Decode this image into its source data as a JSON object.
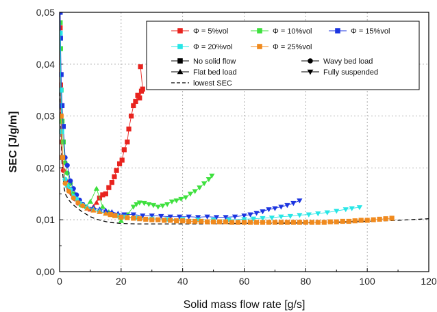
{
  "chart_data": {
    "type": "scatter",
    "title": "",
    "xlabel": "Solid mass flow rate [g/s]",
    "ylabel": "SEC [J/g/m]",
    "xlim": [
      0,
      120
    ],
    "ylim": [
      0,
      0.05
    ],
    "xticks": [
      "0",
      "20",
      "40",
      "60",
      "80",
      "100",
      "120"
    ],
    "yticks": [
      "0,00",
      "0,01",
      "0,02",
      "0,03",
      "0,04",
      "0,05"
    ],
    "grid": true,
    "legend_position": "top-right",
    "legend_entries": [
      {
        "label": "Φ = 5%vol",
        "color": "#e8231e",
        "kind": "series"
      },
      {
        "label": "Φ = 10%vol",
        "color": "#3ee03e",
        "kind": "series"
      },
      {
        "label": "Φ = 15%vol",
        "color": "#1c35e0",
        "kind": "series"
      },
      {
        "label": "Φ = 20%vol",
        "color": "#27e6e6",
        "kind": "series"
      },
      {
        "label": "Φ = 25%vol",
        "color": "#f08a1e",
        "kind": "series"
      },
      {
        "label": "No solid flow",
        "marker": "square",
        "kind": "marker"
      },
      {
        "label": "Wavy bed load",
        "marker": "circle",
        "kind": "marker"
      },
      {
        "label": "Flat bed load",
        "marker": "triangle-up",
        "kind": "marker"
      },
      {
        "label": "Fully suspended",
        "marker": "triangle-down",
        "kind": "marker"
      },
      {
        "label": "lowest SEC",
        "marker": "dashed",
        "kind": "line"
      }
    ],
    "series": [
      {
        "name": "Φ = 5%vol",
        "color": "#e8231e",
        "points": [
          [
            0.2,
            0.047,
            "s"
          ],
          [
            0.3,
            0.036,
            "s"
          ],
          [
            0.4,
            0.03,
            "s"
          ],
          [
            0.6,
            0.025,
            "s"
          ],
          [
            0.8,
            0.022,
            "s"
          ],
          [
            1.2,
            0.0195,
            "o"
          ],
          [
            2,
            0.0175,
            "o"
          ],
          [
            3,
            0.016,
            "o"
          ],
          [
            4,
            0.015,
            "o"
          ],
          [
            5,
            0.014,
            "o"
          ],
          [
            6,
            0.0132,
            "o"
          ],
          [
            7.5,
            0.0128,
            "o"
          ],
          [
            9,
            0.0122,
            "^"
          ],
          [
            10,
            0.012,
            "^"
          ],
          [
            11,
            0.0125,
            "^"
          ],
          [
            12,
            0.0133,
            "^"
          ],
          [
            13,
            0.0142,
            "s"
          ],
          [
            14,
            0.0148,
            "s"
          ],
          [
            15,
            0.015,
            "s"
          ],
          [
            16,
            0.0162,
            "s"
          ],
          [
            17,
            0.0172,
            "s"
          ],
          [
            17.8,
            0.0183,
            "s"
          ],
          [
            18.5,
            0.0195,
            "s"
          ],
          [
            19.5,
            0.0208,
            "s"
          ],
          [
            20.3,
            0.0215,
            "s"
          ],
          [
            21,
            0.0235,
            "s"
          ],
          [
            22,
            0.025,
            "s"
          ],
          [
            22.5,
            0.0275,
            "s"
          ],
          [
            23.3,
            0.03,
            "s"
          ],
          [
            24,
            0.032,
            "s"
          ],
          [
            24.7,
            0.0328,
            "s"
          ],
          [
            25.4,
            0.034,
            "s"
          ],
          [
            26,
            0.0335,
            "s"
          ],
          [
            26.6,
            0.0348,
            "s"
          ],
          [
            27,
            0.0352,
            "s"
          ],
          [
            26.3,
            0.0395,
            "s"
          ]
        ]
      },
      {
        "name": "Φ = 10%vol",
        "color": "#3ee03e",
        "points": [
          [
            0.2,
            0.048,
            "s"
          ],
          [
            0.3,
            0.043,
            "s"
          ],
          [
            0.5,
            0.035,
            "s"
          ],
          [
            0.8,
            0.029,
            "s"
          ],
          [
            1.2,
            0.025,
            "s"
          ],
          [
            1.8,
            0.021,
            "o"
          ],
          [
            2.5,
            0.019,
            "o"
          ],
          [
            3.5,
            0.017,
            "o"
          ],
          [
            4.5,
            0.015,
            "o"
          ],
          [
            5.5,
            0.014,
            "o"
          ],
          [
            7,
            0.0128,
            "o"
          ],
          [
            8.5,
            0.0125,
            "o"
          ],
          [
            10,
            0.0135,
            "^"
          ],
          [
            12,
            0.016,
            "^"
          ],
          [
            14,
            0.0125,
            "^"
          ],
          [
            16,
            0.0115,
            "^"
          ],
          [
            18,
            0.0108,
            "^"
          ],
          [
            20,
            0.0098,
            "^"
          ],
          [
            22,
            0.011,
            "v"
          ],
          [
            24,
            0.0125,
            "v"
          ],
          [
            25,
            0.013,
            "v"
          ],
          [
            26,
            0.0133,
            "v"
          ],
          [
            27.5,
            0.0132,
            "v"
          ],
          [
            29,
            0.013,
            "v"
          ],
          [
            30.5,
            0.0128,
            "v"
          ],
          [
            32,
            0.0125,
            "v"
          ],
          [
            33.5,
            0.0127,
            "v"
          ],
          [
            35,
            0.013,
            "v"
          ],
          [
            36.5,
            0.0135,
            "v"
          ],
          [
            38,
            0.0137,
            "v"
          ],
          [
            39.5,
            0.014,
            "v"
          ],
          [
            41,
            0.0143,
            "v"
          ],
          [
            42.5,
            0.015,
            "v"
          ],
          [
            44,
            0.0155,
            "v"
          ],
          [
            45.5,
            0.0162,
            "v"
          ],
          [
            47,
            0.017,
            "v"
          ],
          [
            48.5,
            0.0178,
            "v"
          ],
          [
            49.5,
            0.0185,
            "v"
          ]
        ]
      },
      {
        "name": "Φ = 15%vol",
        "color": "#1c35e0",
        "points": [
          [
            0.2,
            0.05,
            "s"
          ],
          [
            0.3,
            0.045,
            "s"
          ],
          [
            0.5,
            0.038,
            "s"
          ],
          [
            0.8,
            0.032,
            "s"
          ],
          [
            1.2,
            0.028,
            "s"
          ],
          [
            1.8,
            0.022,
            "o"
          ],
          [
            2.5,
            0.0205,
            "o"
          ],
          [
            3.5,
            0.0175,
            "o"
          ],
          [
            4.5,
            0.016,
            "o"
          ],
          [
            5.5,
            0.0148,
            "o"
          ],
          [
            6.5,
            0.0138,
            "o"
          ],
          [
            7.5,
            0.013,
            "o"
          ],
          [
            9,
            0.0125,
            "^"
          ],
          [
            11,
            0.0123,
            "^"
          ],
          [
            13,
            0.012,
            "^"
          ],
          [
            15,
            0.0118,
            "^"
          ],
          [
            17,
            0.0115,
            "^"
          ],
          [
            19,
            0.0112,
            "^"
          ],
          [
            21,
            0.011,
            "v"
          ],
          [
            24,
            0.011,
            "v"
          ],
          [
            27,
            0.0108,
            "v"
          ],
          [
            30,
            0.0108,
            "v"
          ],
          [
            33,
            0.0107,
            "v"
          ],
          [
            36,
            0.0106,
            "v"
          ],
          [
            39,
            0.0106,
            "v"
          ],
          [
            42,
            0.0106,
            "v"
          ],
          [
            45,
            0.0105,
            "v"
          ],
          [
            48,
            0.0106,
            "v"
          ],
          [
            51,
            0.0105,
            "v"
          ],
          [
            54,
            0.0105,
            "v"
          ],
          [
            57,
            0.0106,
            "v"
          ],
          [
            60,
            0.0108,
            "v"
          ],
          [
            62,
            0.011,
            "v"
          ],
          [
            64,
            0.0113,
            "v"
          ],
          [
            66,
            0.0116,
            "v"
          ],
          [
            68,
            0.012,
            "v"
          ],
          [
            70,
            0.0122,
            "v"
          ],
          [
            72,
            0.0125,
            "v"
          ],
          [
            74,
            0.0128,
            "v"
          ],
          [
            76,
            0.0132,
            "v"
          ],
          [
            78,
            0.0137,
            "v"
          ]
        ]
      },
      {
        "name": "Φ = 20%vol",
        "color": "#27e6e6",
        "points": [
          [
            0.2,
            0.046,
            "s"
          ],
          [
            0.4,
            0.035,
            "s"
          ],
          [
            0.7,
            0.027,
            "s"
          ],
          [
            1,
            0.022,
            "s"
          ],
          [
            1.8,
            0.0178,
            "o"
          ],
          [
            2.5,
            0.0165,
            "o"
          ],
          [
            3.5,
            0.0158,
            "o"
          ],
          [
            4.5,
            0.0145,
            "o"
          ],
          [
            5.5,
            0.014,
            "o"
          ],
          [
            6.5,
            0.0132,
            "o"
          ],
          [
            7.5,
            0.0128,
            "o"
          ],
          [
            9,
            0.0125,
            "^"
          ],
          [
            11,
            0.012,
            "^"
          ],
          [
            13,
            0.0117,
            "^"
          ],
          [
            15,
            0.0112,
            "^"
          ],
          [
            17,
            0.011,
            "^"
          ],
          [
            19,
            0.0108,
            "^"
          ],
          [
            21,
            0.0106,
            "v"
          ],
          [
            25,
            0.0104,
            "v"
          ],
          [
            30,
            0.0102,
            "v"
          ],
          [
            35,
            0.0101,
            "v"
          ],
          [
            40,
            0.0101,
            "v"
          ],
          [
            45,
            0.01,
            "v"
          ],
          [
            50,
            0.01,
            "v"
          ],
          [
            55,
            0.01,
            "v"
          ],
          [
            60,
            0.0101,
            "v"
          ],
          [
            63,
            0.0102,
            "v"
          ],
          [
            66,
            0.0103,
            "v"
          ],
          [
            69,
            0.0104,
            "v"
          ],
          [
            72,
            0.0106,
            "v"
          ],
          [
            75,
            0.0107,
            "v"
          ],
          [
            78,
            0.0109,
            "v"
          ],
          [
            81,
            0.011,
            "v"
          ],
          [
            84,
            0.0112,
            "v"
          ],
          [
            87,
            0.0114,
            "v"
          ],
          [
            90,
            0.0117,
            "v"
          ],
          [
            93,
            0.012,
            "v"
          ],
          [
            95,
            0.0122,
            "v"
          ],
          [
            97.5,
            0.0124,
            "v"
          ]
        ]
      },
      {
        "name": "Φ = 25%vol",
        "color": "#f08a1e",
        "points": [
          [
            0.5,
            0.03,
            "s"
          ],
          [
            1,
            0.022,
            "s"
          ],
          [
            1.8,
            0.017,
            "o"
          ],
          [
            3,
            0.0155,
            "o"
          ],
          [
            4.5,
            0.0142,
            "o"
          ],
          [
            6,
            0.0133,
            "o"
          ],
          [
            7.5,
            0.0127,
            "o"
          ],
          [
            9,
            0.0122,
            "^"
          ],
          [
            11,
            0.0118,
            "^"
          ],
          [
            13,
            0.0115,
            "^"
          ],
          [
            15,
            0.0112,
            "^"
          ],
          [
            16.5,
            0.011,
            "s"
          ],
          [
            18,
            0.0108,
            "s"
          ],
          [
            20,
            0.0105,
            "s"
          ],
          [
            22,
            0.0104,
            "s"
          ],
          [
            24,
            0.0103,
            "s"
          ],
          [
            26,
            0.0102,
            "s"
          ],
          [
            28,
            0.0101,
            "s"
          ],
          [
            30,
            0.01,
            "s"
          ],
          [
            32,
            0.01,
            "s"
          ],
          [
            34,
            0.0099,
            "s"
          ],
          [
            36,
            0.0099,
            "s"
          ],
          [
            38,
            0.0098,
            "s"
          ],
          [
            40,
            0.0098,
            "s"
          ],
          [
            42,
            0.0097,
            "s"
          ],
          [
            44,
            0.0097,
            "s"
          ],
          [
            46,
            0.0097,
            "s"
          ],
          [
            48,
            0.0096,
            "s"
          ],
          [
            50,
            0.0096,
            "s"
          ],
          [
            52,
            0.0096,
            "s"
          ],
          [
            54,
            0.0096,
            "s"
          ],
          [
            56,
            0.0095,
            "s"
          ],
          [
            58,
            0.0095,
            "s"
          ],
          [
            60,
            0.0095,
            "s"
          ],
          [
            62,
            0.0095,
            "s"
          ],
          [
            64,
            0.0095,
            "s"
          ],
          [
            66,
            0.0095,
            "s"
          ],
          [
            68,
            0.0095,
            "s"
          ],
          [
            70,
            0.0095,
            "s"
          ],
          [
            72,
            0.0095,
            "s"
          ],
          [
            74,
            0.0095,
            "s"
          ],
          [
            76,
            0.0095,
            "s"
          ],
          [
            78,
            0.0095,
            "s"
          ],
          [
            80,
            0.0095,
            "s"
          ],
          [
            82,
            0.0095,
            "s"
          ],
          [
            84,
            0.0095,
            "s"
          ],
          [
            86,
            0.0095,
            "s"
          ],
          [
            88,
            0.0096,
            "s"
          ],
          [
            90,
            0.0096,
            "s"
          ],
          [
            92,
            0.0097,
            "s"
          ],
          [
            94,
            0.0097,
            "s"
          ],
          [
            96,
            0.0098,
            "s"
          ],
          [
            98,
            0.0099,
            "s"
          ],
          [
            100,
            0.0099,
            "s"
          ],
          [
            102,
            0.01,
            "s"
          ],
          [
            104,
            0.0101,
            "s"
          ],
          [
            106,
            0.0102,
            "s"
          ],
          [
            108,
            0.0103,
            "s"
          ]
        ]
      }
    ],
    "lowest_sec_line": {
      "name": "lowest SEC",
      "x": [
        0.2,
        0.4,
        0.7,
        1,
        1.5,
        2,
        3,
        4,
        5,
        6,
        7,
        8,
        10,
        12,
        14,
        16,
        18,
        20,
        25,
        30,
        40,
        50,
        60,
        70,
        80,
        90,
        100,
        110,
        120
      ],
      "y": [
        0.036,
        0.028,
        0.022,
        0.019,
        0.016,
        0.0148,
        0.0138,
        0.0131,
        0.0126,
        0.0121,
        0.0117,
        0.0113,
        0.0106,
        0.0101,
        0.0098,
        0.0095,
        0.0094,
        0.0093,
        0.0092,
        0.0092,
        0.0092,
        0.0092,
        0.0093,
        0.0093,
        0.0094,
        0.0095,
        0.0097,
        0.0099,
        0.0102
      ]
    }
  }
}
